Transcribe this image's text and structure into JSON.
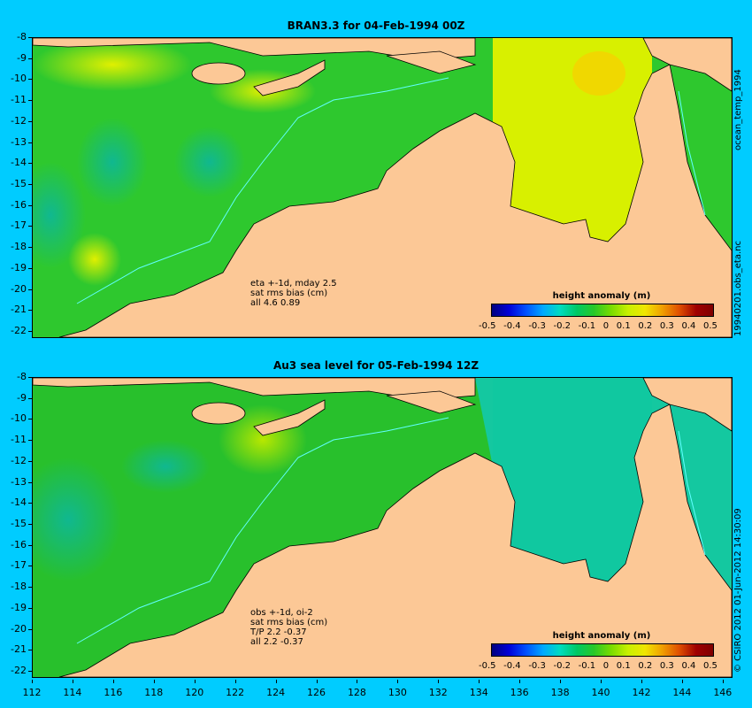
{
  "top": {
    "title": "BRAN3.3 for 04-Feb-1994 00Z",
    "note": [
      "eta +-1d, mday 2.5",
      "sat rms bias (cm)",
      "all 4.6 0.89"
    ],
    "colorbar_title": "height anomaly (m)",
    "side_label": "19940201.obs_eta.nc",
    "top_label": "ocean_temp_1994"
  },
  "bottom": {
    "title": "Au3 sea level  for 05-Feb-1994 12Z",
    "note": [
      "obs +-1d, oi-2",
      "sat rms bias (cm)",
      "T/P  2.2 -0.37",
      "all 2.2 -0.37"
    ],
    "colorbar_title": "height anomaly (m)",
    "side_label": "© CSIRO 2012  01-Jun-2012 14:30:09"
  },
  "colorbar_ticks": [
    "-0.5",
    "-0.4",
    "-0.3",
    "-0.2",
    "-0.1",
    "0",
    "0.1",
    "0.2",
    "0.3",
    "0.4",
    "0.5"
  ],
  "lat_ticks": [
    "-8",
    "-9",
    "-10",
    "-11",
    "-12",
    "-13",
    "-14",
    "-15",
    "-16",
    "-17",
    "-18",
    "-19",
    "-20",
    "-21",
    "-22"
  ],
  "lon_ticks": [
    "112",
    "114",
    "116",
    "118",
    "120",
    "122",
    "124",
    "126",
    "128",
    "130",
    "132",
    "134",
    "136",
    "138",
    "140",
    "142",
    "144",
    "146"
  ],
  "colors": {
    "background": "#00ccff",
    "land": "#fcc896",
    "ocean_green": "#22c822",
    "ocean_yellow": "#d8f000",
    "ocean_teal": "#10c8a0"
  }
}
